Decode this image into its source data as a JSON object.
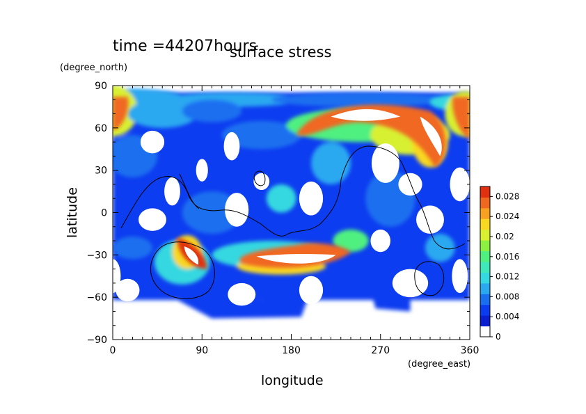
{
  "chart_data": {
    "type": "heatmap",
    "time_label": "time =44207hours",
    "title": "surface stress",
    "xlabel": "longitude",
    "ylabel": "latitude",
    "xunit": "(degree_east)",
    "yunit": "(degree_north)",
    "xlim": [
      0,
      360
    ],
    "ylim": [
      -90,
      90
    ],
    "xticks": [
      "0",
      "90",
      "180",
      "270",
      "360"
    ],
    "yticks": [
      "90",
      "60",
      "30",
      "0",
      "−30",
      "−60",
      "−90"
    ],
    "colorbar": {
      "range": [
        0,
        0.03
      ],
      "ticks": [
        "0.028",
        "0.024",
        "0.02",
        "0.016",
        "0.012",
        "0.008",
        "0.004",
        "0"
      ],
      "colors": [
        "#ffffff",
        "#0a1fd0",
        "#0b3cf0",
        "#1a6ff0",
        "#2aa8f0",
        "#35d8e0",
        "#3ee8b8",
        "#50f080",
        "#8cf040",
        "#d8f030",
        "#f8d820",
        "#f8a020",
        "#f06820",
        "#e03010"
      ]
    },
    "features": [
      {
        "name": "southern-high-latitude-band",
        "lon": [
          180,
          200
        ],
        "lat": [
          -30,
          -40
        ],
        "value": 0.028
      },
      {
        "name": "northern-jet-arc",
        "lon": [
          190,
          330
        ],
        "lat": [
          45,
          70
        ],
        "value": 0.028
      },
      {
        "name": "south-west-cyclone",
        "lon": [
          55,
          95
        ],
        "lat": [
          -20,
          -40
        ],
        "value": 0.028
      },
      {
        "name": "north-edge-band",
        "lon": [
          0,
          360
        ],
        "lat": [
          75,
          85
        ],
        "value": 0.014
      },
      {
        "name": "north-west-corner",
        "lon": [
          0,
          20
        ],
        "lat": [
          60,
          85
        ],
        "value": 0.024
      },
      {
        "name": "north-east-corner",
        "lon": [
          340,
          360
        ],
        "lat": [
          55,
          85
        ],
        "value": 0.024
      }
    ]
  }
}
